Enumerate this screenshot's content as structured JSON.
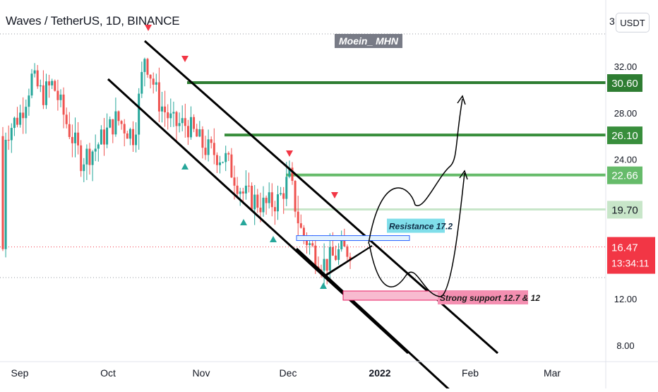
{
  "header": {
    "title": "Waves / TetherUS, 1D, BINANCE",
    "watermark": "Moein_ MHN",
    "currency": "USDT",
    "currency_partial": "3"
  },
  "chart_data": {
    "type": "candlestick",
    "symbol": "Waves / TetherUS",
    "interval": "1D",
    "exchange": "BINANCE",
    "x_ticks": [
      "Sep",
      "Oct",
      "Nov",
      "Dec",
      "2022",
      "Feb",
      "Mar"
    ],
    "y_ticks": [
      8.0,
      12.0,
      16.0,
      20.0,
      24.0,
      28.0,
      32.0
    ],
    "y_tick_labels": [
      "8.00",
      "12.00",
      "",
      "",
      "24.00",
      "28.00",
      "32.00"
    ],
    "ylim": [
      7,
      36
    ],
    "levels": [
      {
        "label": "30.60",
        "value": 30.6,
        "color": "#2e7d32"
      },
      {
        "label": "26.10",
        "value": 26.1,
        "color": "#388e3c"
      },
      {
        "label": "22.66",
        "value": 22.66,
        "color": "#66bb6a"
      },
      {
        "label": "19.70",
        "value": 19.7,
        "color": "#c8e6c9"
      }
    ],
    "current_price": {
      "label": "16.47",
      "value": 16.47,
      "countdown": "13:34:11",
      "color": "#f23645"
    },
    "annotations": [
      {
        "text": "Resistance 17.2",
        "value": 17.2,
        "color": "#80deea"
      },
      {
        "text": "Strong support 12.7 & 12",
        "value": 12.7,
        "color": "#f48fb1"
      }
    ],
    "colors": {
      "up": "#26a69a",
      "down": "#ef5350",
      "channel": "#000000"
    }
  }
}
